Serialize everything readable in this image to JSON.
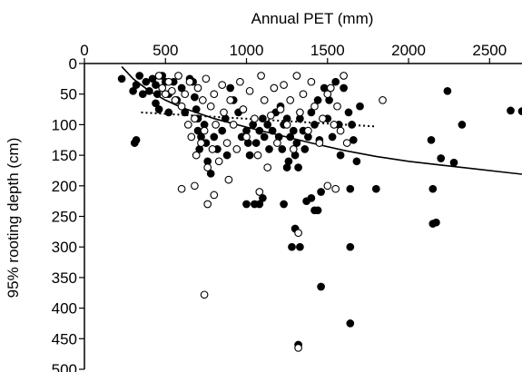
{
  "chart_data": {
    "type": "scatter",
    "xlabel": "Annual PET (mm)",
    "ylabel": "95% rooting depth (cm)",
    "xlim": [
      0,
      2700
    ],
    "ylim": [
      0,
      500
    ],
    "x_axis_position": "top",
    "y_axis_inverted": true,
    "grid": false,
    "legend": "none",
    "xticks": [
      "0",
      "500",
      "1000",
      "1500",
      "2000",
      "2500"
    ],
    "yticks": [
      "0",
      "50",
      "100",
      "150",
      "200",
      "250",
      "300",
      "350",
      "400",
      "450",
      "500"
    ],
    "series": [
      {
        "marker": "filled-circle",
        "color": "#000000",
        "points": [
          [
            230,
            25
          ],
          [
            300,
            45
          ],
          [
            320,
            35
          ],
          [
            310,
            130
          ],
          [
            320,
            125
          ],
          [
            340,
            20
          ],
          [
            360,
            50
          ],
          [
            380,
            30
          ],
          [
            400,
            45
          ],
          [
            420,
            25
          ],
          [
            440,
            35
          ],
          [
            440,
            65
          ],
          [
            450,
            50
          ],
          [
            460,
            75
          ],
          [
            480,
            20
          ],
          [
            500,
            30
          ],
          [
            520,
            50
          ],
          [
            520,
            80
          ],
          [
            550,
            30
          ],
          [
            570,
            60
          ],
          [
            600,
            40
          ],
          [
            620,
            80
          ],
          [
            650,
            25
          ],
          [
            670,
            30
          ],
          [
            680,
            55
          ],
          [
            690,
            75
          ],
          [
            700,
            90
          ],
          [
            700,
            110
          ],
          [
            710,
            140
          ],
          [
            720,
            120
          ],
          [
            740,
            100
          ],
          [
            750,
            130
          ],
          [
            760,
            160
          ],
          [
            780,
            180
          ],
          [
            800,
            120
          ],
          [
            820,
            140
          ],
          [
            850,
            110
          ],
          [
            870,
            90
          ],
          [
            880,
            150
          ],
          [
            900,
            40
          ],
          [
            920,
            60
          ],
          [
            950,
            80
          ],
          [
            970,
            120
          ],
          [
            1000,
            110
          ],
          [
            1010,
            130
          ],
          [
            1020,
            150
          ],
          [
            1040,
            100
          ],
          [
            1060,
            130
          ],
          [
            1080,
            110
          ],
          [
            1100,
            90
          ],
          [
            1110,
            120
          ],
          [
            1130,
            100
          ],
          [
            1140,
            140
          ],
          [
            1160,
            110
          ],
          [
            1180,
            80
          ],
          [
            1200,
            120
          ],
          [
            1210,
            70
          ],
          [
            1220,
            140
          ],
          [
            1230,
            100
          ],
          [
            1250,
            90
          ],
          [
            1260,
            160
          ],
          [
            1270,
            120
          ],
          [
            1290,
            110
          ],
          [
            1300,
            150
          ],
          [
            1310,
            130
          ],
          [
            1320,
            170
          ],
          [
            1330,
            90
          ],
          [
            1350,
            110
          ],
          [
            1360,
            140
          ],
          [
            1380,
            120
          ],
          [
            1400,
            80
          ],
          [
            1420,
            100
          ],
          [
            1440,
            60
          ],
          [
            1450,
            125
          ],
          [
            1480,
            40
          ],
          [
            1500,
            90
          ],
          [
            1510,
            60
          ],
          [
            1530,
            120
          ],
          [
            1550,
            30
          ],
          [
            1570,
            100
          ],
          [
            1580,
            150
          ],
          [
            1600,
            40
          ],
          [
            1630,
            80
          ],
          [
            1650,
            100
          ],
          [
            1660,
            125
          ],
          [
            1680,
            160
          ],
          [
            1700,
            70
          ],
          [
            1000,
            230
          ],
          [
            1050,
            230
          ],
          [
            1080,
            230
          ],
          [
            1100,
            220
          ],
          [
            1230,
            230
          ],
          [
            1250,
            170
          ],
          [
            1280,
            300
          ],
          [
            1300,
            270
          ],
          [
            1330,
            300
          ],
          [
            1370,
            225
          ],
          [
            1400,
            220
          ],
          [
            1420,
            240
          ],
          [
            1440,
            240
          ],
          [
            1460,
            210
          ],
          [
            1640,
            300
          ],
          [
            1460,
            365
          ],
          [
            1640,
            425
          ],
          [
            1320,
            460
          ],
          [
            1640,
            205
          ],
          [
            1800,
            205
          ],
          [
            2140,
            125
          ],
          [
            2150,
            205
          ],
          [
            2150,
            262
          ],
          [
            2170,
            260
          ],
          [
            2200,
            155
          ],
          [
            2240,
            45
          ],
          [
            2280,
            162
          ],
          [
            2330,
            100
          ],
          [
            2630,
            77
          ],
          [
            2700,
            78
          ]
        ]
      },
      {
        "marker": "open-circle",
        "color": "#000000",
        "points": [
          [
            460,
            20
          ],
          [
            480,
            40
          ],
          [
            500,
            50
          ],
          [
            520,
            30
          ],
          [
            540,
            45
          ],
          [
            560,
            60
          ],
          [
            580,
            20
          ],
          [
            600,
            70
          ],
          [
            620,
            50
          ],
          [
            640,
            100
          ],
          [
            650,
            30
          ],
          [
            660,
            120
          ],
          [
            680,
            90
          ],
          [
            690,
            150
          ],
          [
            700,
            40
          ],
          [
            720,
            130
          ],
          [
            730,
            60
          ],
          [
            740,
            110
          ],
          [
            750,
            25
          ],
          [
            760,
            170
          ],
          [
            780,
            70
          ],
          [
            790,
            140
          ],
          [
            800,
            50
          ],
          [
            810,
            100
          ],
          [
            830,
            160
          ],
          [
            850,
            35
          ],
          [
            860,
            80
          ],
          [
            880,
            130
          ],
          [
            890,
            190
          ],
          [
            900,
            60
          ],
          [
            920,
            100
          ],
          [
            940,
            140
          ],
          [
            960,
            30
          ],
          [
            980,
            75
          ],
          [
            1000,
            120
          ],
          [
            1020,
            45
          ],
          [
            1050,
            90
          ],
          [
            1070,
            150
          ],
          [
            1090,
            20
          ],
          [
            1110,
            60
          ],
          [
            1130,
            170
          ],
          [
            1150,
            85
          ],
          [
            1170,
            40
          ],
          [
            1190,
            130
          ],
          [
            1210,
            75
          ],
          [
            1230,
            35
          ],
          [
            1250,
            100
          ],
          [
            1270,
            60
          ],
          [
            1290,
            140
          ],
          [
            1310,
            20
          ],
          [
            1330,
            80
          ],
          [
            1350,
            50
          ],
          [
            1380,
            110
          ],
          [
            1400,
            30
          ],
          [
            1420,
            70
          ],
          [
            1450,
            130
          ],
          [
            1470,
            90
          ],
          [
            1500,
            50
          ],
          [
            1520,
            40
          ],
          [
            1540,
            100
          ],
          [
            1560,
            70
          ],
          [
            1580,
            110
          ],
          [
            1600,
            20
          ],
          [
            1620,
            130
          ],
          [
            1840,
            60
          ],
          [
            600,
            205
          ],
          [
            680,
            200
          ],
          [
            760,
            230
          ],
          [
            800,
            215
          ],
          [
            1080,
            210
          ],
          [
            1320,
            277
          ],
          [
            1500,
            200
          ],
          [
            1550,
            205
          ],
          [
            740,
            378
          ],
          [
            1320,
            465
          ]
        ]
      },
      {
        "marker": "line",
        "color": "#000000",
        "points": [
          [
            230,
            5
          ],
          [
            300,
            25
          ],
          [
            400,
            45
          ],
          [
            500,
            60
          ],
          [
            600,
            72
          ],
          [
            800,
            90
          ],
          [
            1000,
            104
          ],
          [
            1200,
            117
          ],
          [
            1400,
            130
          ],
          [
            1600,
            142
          ],
          [
            1800,
            152
          ],
          [
            2000,
            160
          ],
          [
            2200,
            166
          ],
          [
            2400,
            172
          ],
          [
            2600,
            178
          ],
          [
            2700,
            181
          ]
        ]
      },
      {
        "marker": "dotted-line",
        "color": "#000000",
        "points": [
          [
            350,
            80
          ],
          [
            1800,
            103
          ]
        ]
      }
    ]
  }
}
